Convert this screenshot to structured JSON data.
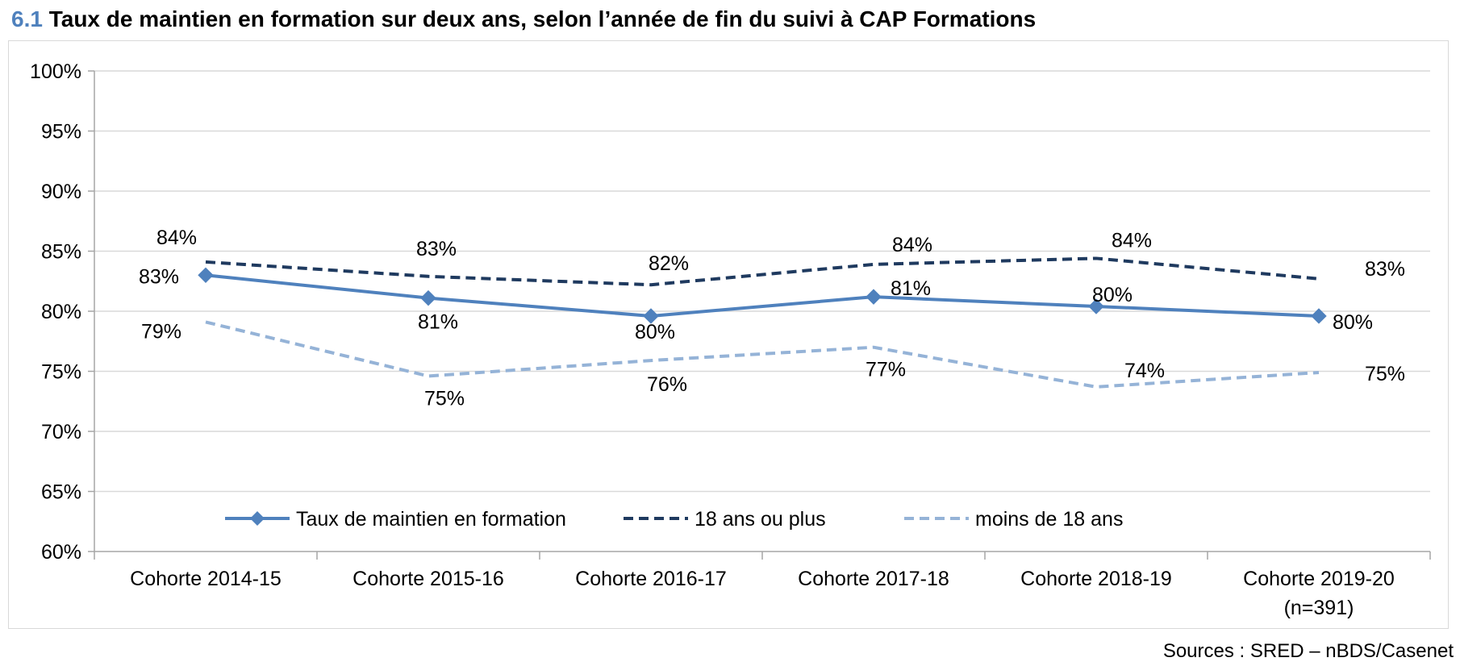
{
  "title": {
    "number": "6.1",
    "text": "Taux de maintien en formation sur deux ans, selon l’année de fin du suivi à CAP Formations"
  },
  "source": "Sources : SRED – nBDS/Casenet",
  "chart_data": {
    "type": "line",
    "categories": [
      [
        "Cohorte 2014-15"
      ],
      [
        "Cohorte 2015-16"
      ],
      [
        "Cohorte 2016-17"
      ],
      [
        "Cohorte 2017-18"
      ],
      [
        "Cohorte 2018-19"
      ],
      [
        "Cohorte 2019-20",
        "(n=391)"
      ]
    ],
    "ylim": [
      0.6,
      1.0
    ],
    "yticks": [
      "60%",
      "65%",
      "70%",
      "75%",
      "80%",
      "85%",
      "90%",
      "95%",
      "100%"
    ],
    "grid": true,
    "legend_position": "bottom",
    "series": [
      {
        "name": "Taux de maintien en formation",
        "values": [
          0.83,
          0.811,
          0.796,
          0.812,
          0.804,
          0.796
        ],
        "labels": [
          "83%",
          "81%",
          "80%",
          "81%",
          "80%",
          "80%"
        ],
        "color": "#4f81bd",
        "style": "solid",
        "marker": "diamond"
      },
      {
        "name": "18 ans ou plus",
        "values": [
          0.841,
          0.829,
          0.822,
          0.839,
          0.844,
          0.827
        ],
        "labels": [
          "84%",
          "83%",
          "82%",
          "84%",
          "84%",
          "83%"
        ],
        "color": "#1f3a5f",
        "style": "dashed",
        "marker": "none"
      },
      {
        "name": "moins de 18 ans",
        "values": [
          0.791,
          0.746,
          0.759,
          0.77,
          0.737,
          0.749
        ],
        "labels": [
          "79%",
          "75%",
          "76%",
          "77%",
          "74%",
          "75%"
        ],
        "color": "#95b3d7",
        "style": "dashed",
        "marker": "none"
      }
    ]
  }
}
